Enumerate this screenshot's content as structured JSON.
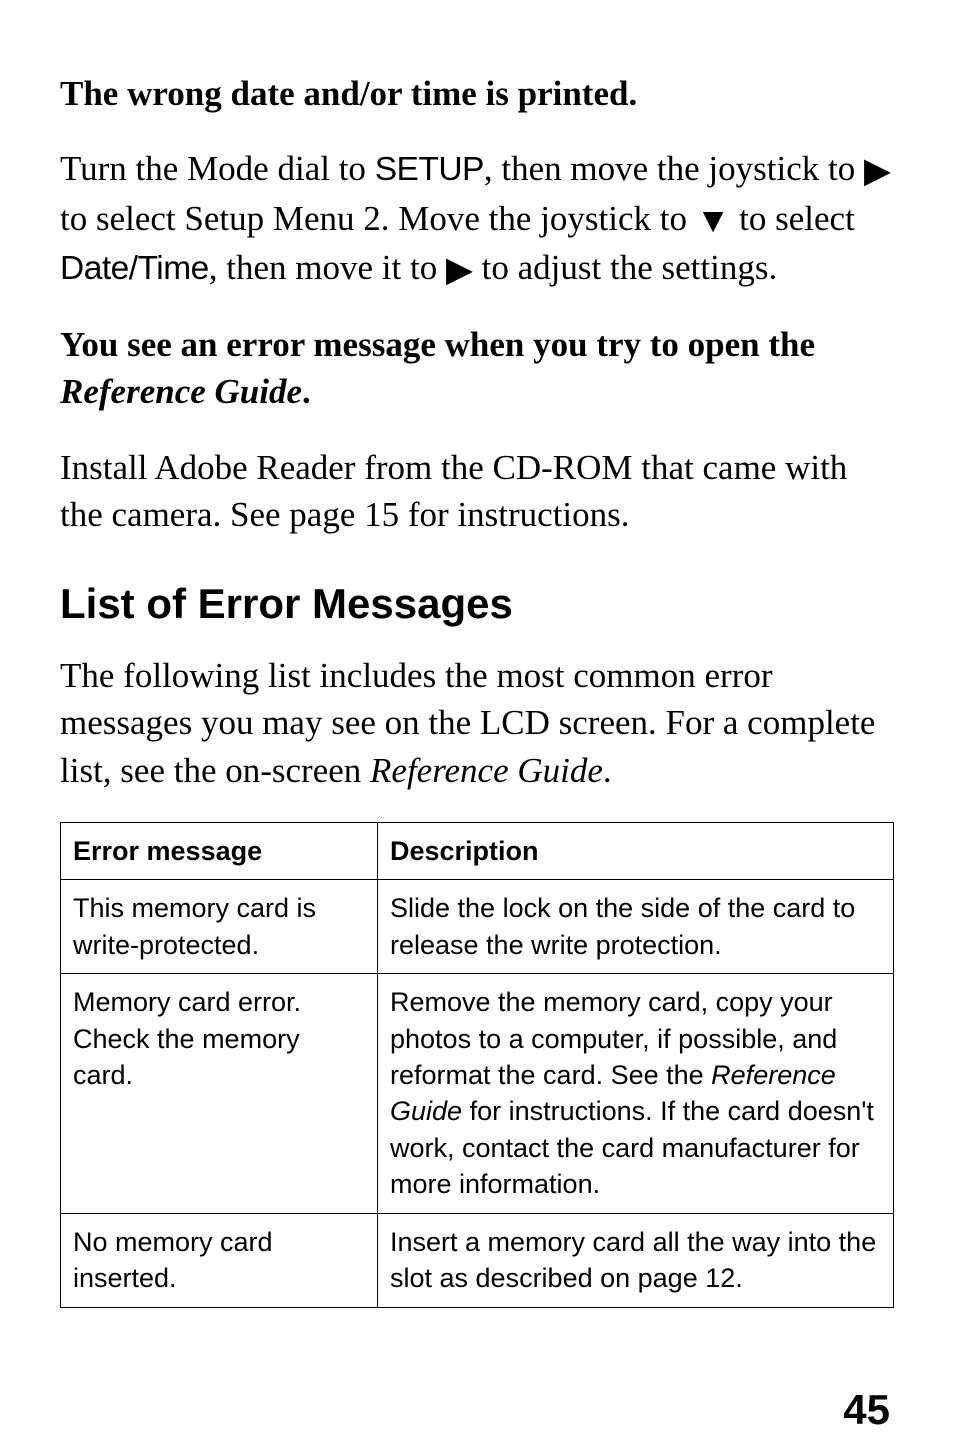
{
  "sections": {
    "h1": "The wrong date and/or time is printed.",
    "p1_a": "Turn the Mode dial to ",
    "p1_setup": "SETUP",
    "p1_b": ", then move the joystick to ",
    "tri_right": "▶",
    "p1_c": " to select Setup Menu 2. Move the joystick to ",
    "tri_down": "▼",
    "p1_d": " to select ",
    "p1_datetime": "Date/Time",
    "p1_e": ", then move it to ",
    "p1_f": " to adjust the settings.",
    "h2_a": "You see an error message when you try to open the ",
    "h2_ital": "Reference Guide",
    "h2_b": ".",
    "p2": "Install Adobe Reader from the CD-ROM that came with the camera. See page 15 for instructions.",
    "title": "List of Error Messages",
    "p3_a": "The following list includes the most common error messages you may see on the LCD screen. For a complete list, see the on-screen ",
    "p3_ital": "Reference Guide",
    "p3_b": "."
  },
  "table": {
    "headers": [
      "Error message",
      "Description"
    ],
    "rows": [
      {
        "error": "This memory card is write-protected.",
        "desc_a": "Slide the lock on the side of the card to release the write protection.",
        "desc_ital": "",
        "desc_b": ""
      },
      {
        "error": "Memory card error. Check the memory card.",
        "desc_a": "Remove the memory card, copy your photos to a computer, if possible, and reformat the card. See the ",
        "desc_ital": "Reference Guide",
        "desc_b": " for instructions. If the card doesn't work, contact the card manufacturer for more information."
      },
      {
        "error": "No memory card inserted.",
        "desc_a": "Insert a memory card all the way into the slot as described on page 12.",
        "desc_ital": "",
        "desc_b": ""
      }
    ]
  },
  "page_number": "45"
}
